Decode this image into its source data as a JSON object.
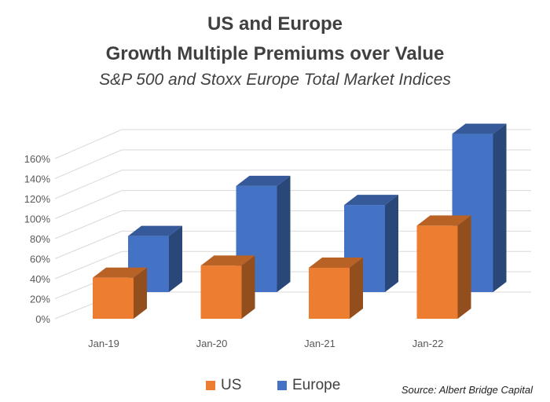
{
  "chart_data": {
    "type": "bar",
    "title": [
      "US and Europe",
      "Growth Multiple Premiums over Value"
    ],
    "subtitle": "S&P 500 and Stoxx Europe Total Market Indices",
    "categories": [
      "Jan-19",
      "Jan-20",
      "Jan-21",
      "Jan-22"
    ],
    "series": [
      {
        "name": "US",
        "values": [
          41,
          53,
          51,
          93
        ],
        "color": "#ED7D31"
      },
      {
        "name": "Europe",
        "values": [
          56,
          106,
          87,
          158
        ],
        "color": "#4472C4"
      }
    ],
    "y_ticks": [
      "0%",
      "20%",
      "40%",
      "60%",
      "80%",
      "100%",
      "120%",
      "140%",
      "160%"
    ],
    "ylim": [
      0,
      160
    ],
    "grid": true,
    "three_d": true,
    "legend_position": "bottom",
    "source": "Source:  Albert Bridge Capital"
  }
}
